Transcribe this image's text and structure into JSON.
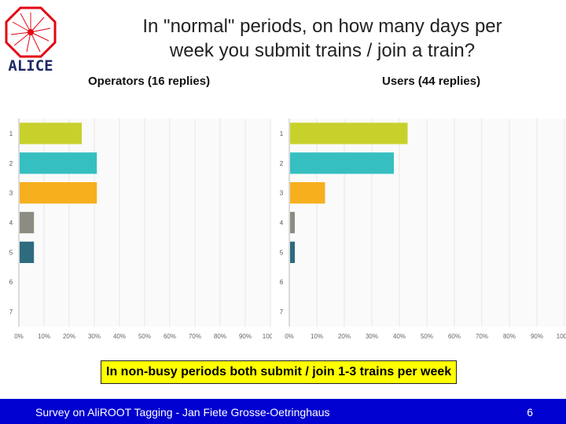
{
  "logo": {
    "text": "ALICE",
    "colors": {
      "frame": "#e30613",
      "text": "#1f2a64"
    }
  },
  "title": {
    "line1": "In \"normal\" periods, on how many days per",
    "line2": "week you submit trains / join a train?"
  },
  "chart_data": [
    {
      "type": "bar",
      "orientation": "horizontal",
      "title": "Operators (16 replies)",
      "categories": [
        "1",
        "2",
        "3",
        "4",
        "5",
        "6",
        "7"
      ],
      "values": [
        25,
        31,
        31,
        6,
        6,
        0,
        0
      ],
      "xlim": [
        0,
        100
      ],
      "xticks": [
        "0%",
        "10%",
        "20%",
        "30%",
        "40%",
        "50%",
        "60%",
        "70%",
        "80%",
        "90%",
        "100%"
      ],
      "grid": true,
      "colors": [
        "#c8d12b",
        "#36bfc1",
        "#f6b01e",
        "#8c8c82",
        "#2e6b7f",
        "#888888",
        "#888888"
      ]
    },
    {
      "type": "bar",
      "orientation": "horizontal",
      "title": "Users (44 replies)",
      "categories": [
        "1",
        "2",
        "3",
        "4",
        "5",
        "6",
        "7"
      ],
      "values": [
        43,
        38,
        13,
        2,
        2,
        0,
        0
      ],
      "xlim": [
        0,
        100
      ],
      "xticks": [
        "0%",
        "10%",
        "20%",
        "30%",
        "40%",
        "50%",
        "60%",
        "70%",
        "80%",
        "90%",
        "100%"
      ],
      "grid": true,
      "colors": [
        "#c8d12b",
        "#36bfc1",
        "#f6b01e",
        "#8c8c82",
        "#2e6b7f",
        "#888888",
        "#888888"
      ]
    }
  ],
  "callout": "In non-busy periods both submit / join 1-3 trains per week",
  "footer": {
    "left": "Survey on AliROOT Tagging - Jan Fiete Grosse-Oetringhaus",
    "right": "6"
  }
}
